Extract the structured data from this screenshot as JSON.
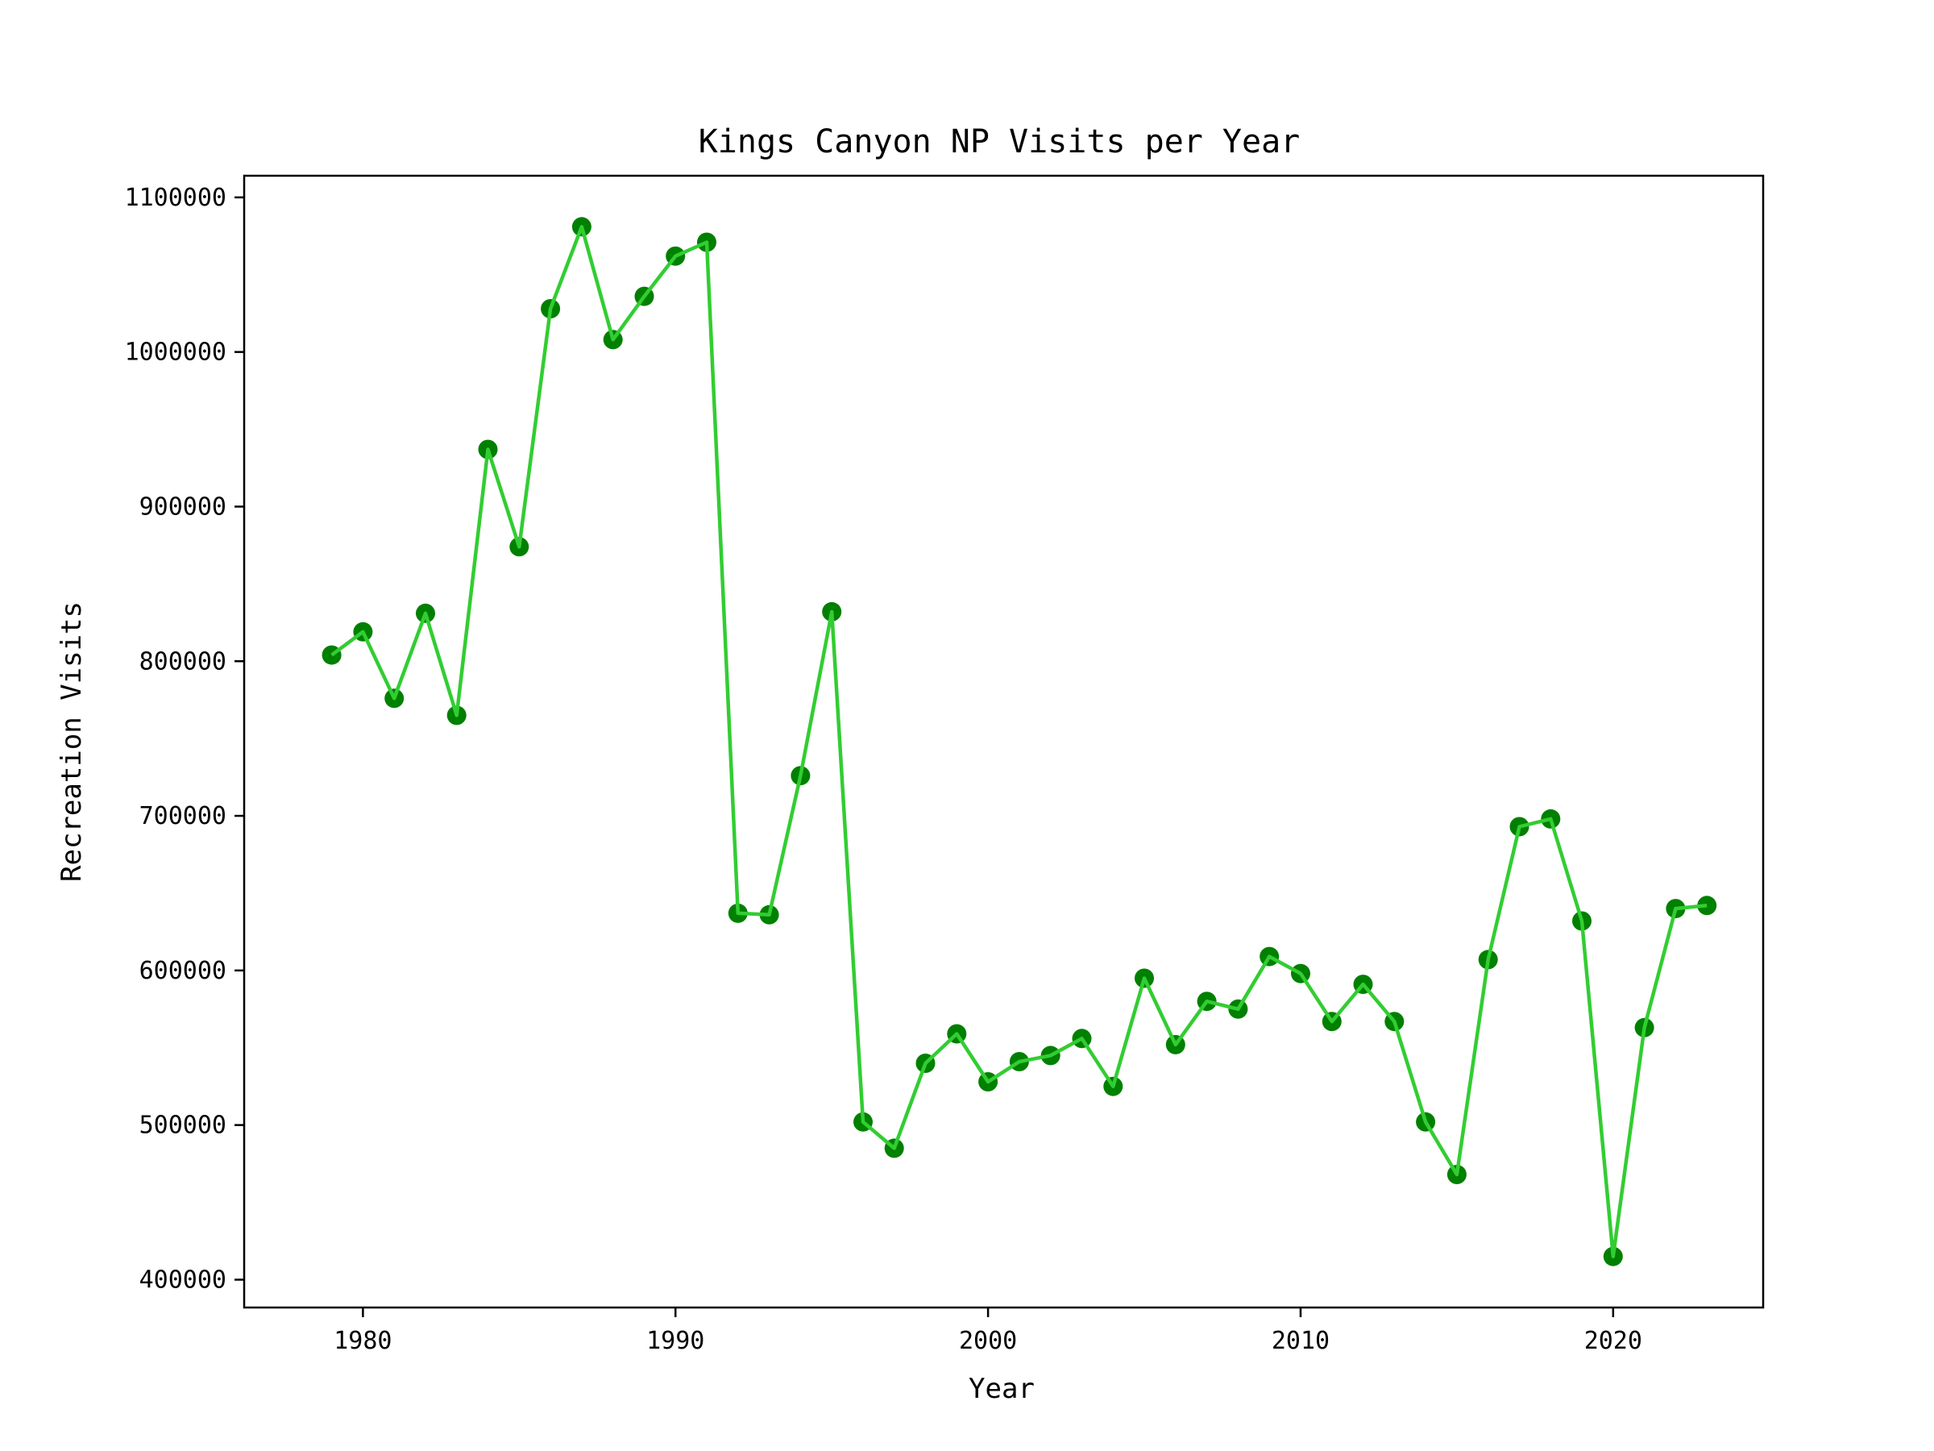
{
  "chart_data": {
    "type": "line",
    "title": "Kings Canyon NP Visits per Year",
    "xlabel": "Year",
    "ylabel": "Recreation Visits",
    "xlim": [
      1976.2,
      2024.8
    ],
    "ylim": [
      382000,
      1114000
    ],
    "x_ticks": [
      1980,
      1990,
      2000,
      2010,
      2020
    ],
    "y_ticks": [
      400000,
      500000,
      600000,
      700000,
      800000,
      900000,
      1000000,
      1100000
    ],
    "grid": false,
    "legend": "none",
    "colors": {
      "line": "#32cd32",
      "marker": "#008000",
      "axes": "#000000"
    },
    "series": [
      {
        "x": [
          1979,
          1980,
          1981,
          1982,
          1983,
          1984,
          1985,
          1986,
          1987,
          1988,
          1989,
          1990,
          1991,
          1992,
          1993,
          1994,
          1995,
          1996,
          1997,
          1998,
          1999,
          2000,
          2001,
          2002,
          2003,
          2004,
          2005,
          2006,
          2007,
          2008,
          2009,
          2010,
          2011,
          2012,
          2013,
          2014,
          2015,
          2016,
          2017,
          2018,
          2019,
          2020,
          2021,
          2022,
          2023
        ],
        "values": [
          804000,
          819000,
          776000,
          831000,
          765000,
          937000,
          874000,
          1028000,
          1081000,
          1008000,
          1036000,
          1062000,
          1071000,
          637000,
          636000,
          726000,
          832000,
          502000,
          485000,
          540000,
          559000,
          528000,
          541000,
          545000,
          556000,
          525000,
          595000,
          552000,
          580000,
          575000,
          609000,
          598000,
          567000,
          591000,
          567000,
          502000,
          468000,
          607000,
          693000,
          698000,
          632000,
          415000,
          563000,
          640000,
          642000
        ]
      }
    ]
  }
}
